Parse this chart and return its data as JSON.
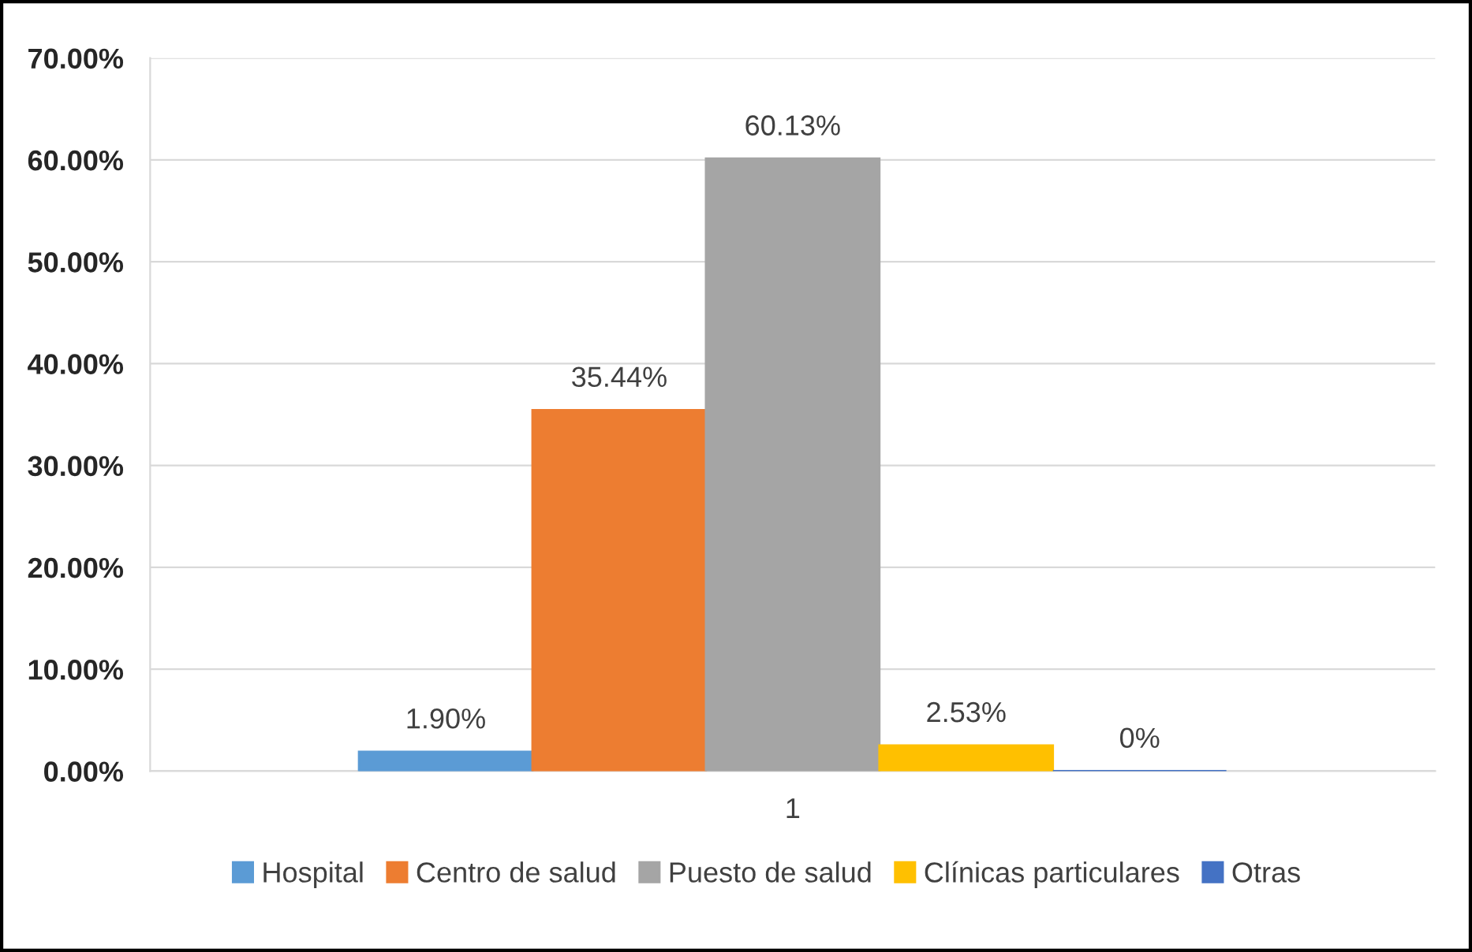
{
  "chart_data": {
    "type": "bar",
    "categories": [
      "1"
    ],
    "series": [
      {
        "name": "Hospital",
        "color": "#5b9bd5",
        "values": [
          1.9
        ],
        "value_labels": [
          "1.90%"
        ]
      },
      {
        "name": "Centro de salud",
        "color": "#ed7d31",
        "values": [
          35.44
        ],
        "value_labels": [
          "35.44%"
        ]
      },
      {
        "name": "Puesto de salud",
        "color": "#a5a5a5",
        "values": [
          60.13
        ],
        "value_labels": [
          "60.13%"
        ]
      },
      {
        "name": "Clínicas particulares",
        "color": "#ffc000",
        "values": [
          2.53
        ],
        "value_labels": [
          "2.53%"
        ]
      },
      {
        "name": "Otras",
        "color": "#4472c4",
        "values": [
          0
        ],
        "value_labels": [
          "0%"
        ]
      }
    ],
    "ylim": [
      0,
      70
    ],
    "yticks": [
      {
        "value": 0,
        "label": "0.00%"
      },
      {
        "value": 10,
        "label": "10.00%"
      },
      {
        "value": 20,
        "label": "20.00%"
      },
      {
        "value": 30,
        "label": "30.00%"
      },
      {
        "value": 40,
        "label": "40.00%"
      },
      {
        "value": 50,
        "label": "50.00%"
      },
      {
        "value": 60,
        "label": "60.00%"
      },
      {
        "value": 70,
        "label": "70.00%"
      }
    ],
    "grid": "y",
    "legend": "bottom"
  }
}
